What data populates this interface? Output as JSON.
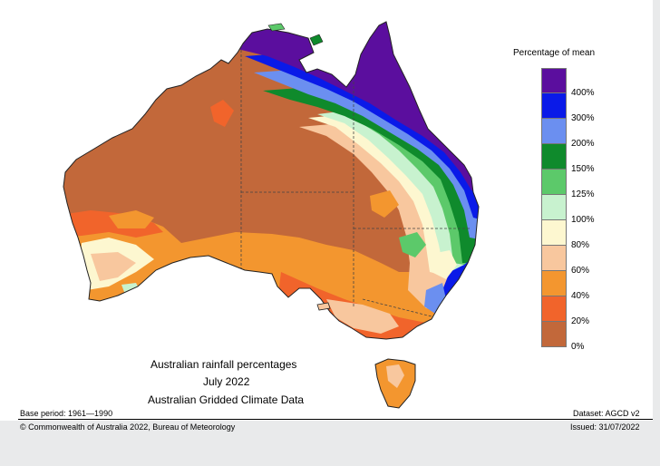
{
  "legend": {
    "title": "Percentage of mean",
    "items": [
      {
        "label": "400%",
        "color": "#5b0e9e"
      },
      {
        "label": "300%",
        "color": "#0a1ae8"
      },
      {
        "label": "200%",
        "color": "#6b8ff0"
      },
      {
        "label": "150%",
        "color": "#0f8a2c"
      },
      {
        "label": "125%",
        "color": "#5cc96a"
      },
      {
        "label": "100%",
        "color": "#c8f2cf"
      },
      {
        "label": "80%",
        "color": "#fdf7d0"
      },
      {
        "label": "60%",
        "color": "#f8c79e"
      },
      {
        "label": "40%",
        "color": "#f3962f"
      },
      {
        "label": "20%",
        "color": "#f1642b"
      },
      {
        "label": "0%",
        "color": "#c2683a"
      }
    ]
  },
  "map_title": {
    "line1": "Australian rainfall percentages",
    "line2": "July 2022",
    "line3": "Australian Gridded Climate Data"
  },
  "footer": {
    "base_period": "Base period: 1961—1990",
    "dataset": "Dataset: AGCD v2",
    "copyright": "© Commonwealth of Australia 2022, Bureau of Meteorology",
    "issued": "Issued: 31/07/2022"
  }
}
